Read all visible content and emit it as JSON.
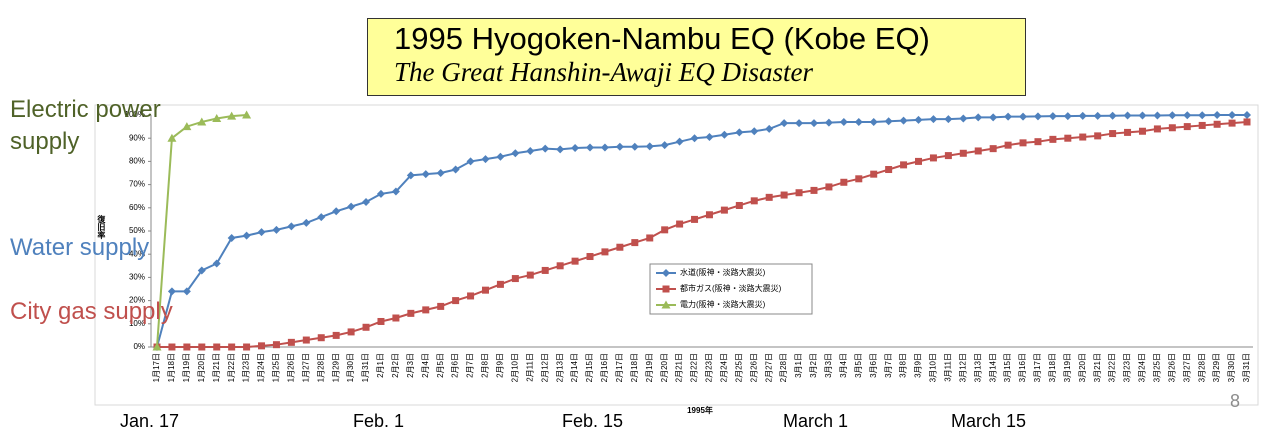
{
  "chart_data": {
    "type": "line",
    "title": "1995 Hyogoken-Nambu EQ (Kobe EQ)",
    "subtitle": "The Great Hanshin-Awaji EQ Disaster",
    "xlabel": "1995年",
    "ylabel": "復旧率",
    "categories": [
      "1月17日",
      "1月18日",
      "1月19日",
      "1月20日",
      "1月21日",
      "1月22日",
      "1月23日",
      "1月24日",
      "1月25日",
      "1月26日",
      "1月27日",
      "1月28日",
      "1月29日",
      "1月30日",
      "1月31日",
      "2月1日",
      "2月2日",
      "2月3日",
      "2月4日",
      "2月5日",
      "2月6日",
      "2月7日",
      "2月8日",
      "2月9日",
      "2月10日",
      "2月11日",
      "2月12日",
      "2月13日",
      "2月14日",
      "2月15日",
      "2月16日",
      "2月17日",
      "2月18日",
      "2月19日",
      "2月20日",
      "2月21日",
      "2月22日",
      "2月23日",
      "2月24日",
      "2月25日",
      "2月26日",
      "2月27日",
      "2月28日",
      "3月1日",
      "3月2日",
      "3月3日",
      "3月4日",
      "3月5日",
      "3月6日",
      "3月7日",
      "3月8日",
      "3月9日",
      "3月10日",
      "3月11日",
      "3月12日",
      "3月13日",
      "3月14日",
      "3月15日",
      "3月16日",
      "3月17日",
      "3月18日",
      "3月19日",
      "3月20日",
      "3月21日",
      "3月22日",
      "3月23日",
      "3月24日",
      "3月25日",
      "3月26日",
      "3月27日",
      "3月28日",
      "3月29日",
      "3月30日",
      "3月31日"
    ],
    "series": [
      {
        "name": "水道(阪神・淡路大震災)",
        "color": "#4f81bd",
        "marker": "diamond",
        "values": [
          0,
          24,
          24,
          33,
          36,
          47,
          48,
          49.5,
          50.5,
          52,
          53.5,
          56,
          58.5,
          60.5,
          62.5,
          66,
          67,
          74,
          74.5,
          75,
          76.5,
          80,
          81,
          82,
          83.5,
          84.5,
          85.5,
          85.2,
          85.8,
          86,
          86,
          86.3,
          86.3,
          86.5,
          87,
          88.5,
          90,
          90.5,
          91.5,
          92.5,
          93,
          94,
          96.5,
          96.5,
          96.5,
          96.7,
          97,
          97,
          97,
          97.3,
          97.6,
          97.9,
          98.2,
          98.2,
          98.5,
          99,
          99,
          99.3,
          99.3,
          99.4,
          99.5,
          99.5,
          99.6,
          99.6,
          99.7,
          99.8,
          99.8,
          99.8,
          99.9,
          99.9,
          99.9,
          100,
          100,
          100
        ]
      },
      {
        "name": "都市ガス(阪神・淡路大震災)",
        "color": "#c0504d",
        "marker": "square",
        "values": [
          0,
          0,
          0,
          0,
          0,
          0,
          0,
          0.5,
          1,
          2,
          3,
          4,
          5,
          6.5,
          8.5,
          11,
          12.5,
          14.5,
          16,
          17.5,
          20,
          22,
          24.5,
          27,
          29.5,
          31,
          33,
          35,
          37,
          39,
          41,
          43,
          45,
          47,
          50.5,
          53,
          55,
          57,
          59,
          61,
          63,
          64.5,
          65.5,
          66.5,
          67.5,
          69,
          71,
          72.5,
          74.5,
          76.5,
          78.5,
          80,
          81.5,
          82.5,
          83.5,
          84.5,
          85.5,
          87,
          88,
          88.5,
          89.5,
          90,
          90.5,
          91,
          92,
          92.5,
          93,
          94,
          94.5,
          95,
          95.5,
          96,
          96.5,
          97
        ]
      },
      {
        "name": "電力(阪神・淡路大震災)",
        "color": "#9bbb59",
        "marker": "triangle",
        "values": [
          0,
          90,
          95,
          97,
          98.5,
          99.5,
          100,
          null,
          null,
          null,
          null,
          null,
          null,
          null,
          null,
          null,
          null,
          null,
          null,
          null,
          null,
          null,
          null,
          null,
          null,
          null,
          null,
          null,
          null,
          null,
          null,
          null,
          null,
          null,
          null,
          null,
          null,
          null,
          null,
          null,
          null,
          null,
          null,
          null,
          null,
          null,
          null,
          null,
          null,
          null,
          null,
          null,
          null,
          null,
          null,
          null,
          null,
          null,
          null,
          null,
          null,
          null,
          null,
          null,
          null,
          null,
          null,
          null,
          null,
          null,
          null,
          null,
          null,
          null
        ]
      }
    ],
    "ylim": [
      0,
      100
    ],
    "yticks": [
      {
        "value": 0,
        "label": "0%"
      },
      {
        "value": 10,
        "label": "10%"
      },
      {
        "value": 20,
        "label": "20%"
      },
      {
        "value": 30,
        "label": "30%"
      },
      {
        "value": 40,
        "label": "40%"
      },
      {
        "value": 50,
        "label": "50%"
      },
      {
        "value": 60,
        "label": "60%"
      },
      {
        "value": 70,
        "label": "70%"
      },
      {
        "value": 80,
        "label": "80%"
      },
      {
        "value": 90,
        "label": "90%"
      },
      {
        "value": 100,
        "label": "100%"
      }
    ],
    "grid": false,
    "legend": "center",
    "annotations": [
      {
        "text": "Electric power supply",
        "color": "#4f6228"
      },
      {
        "text": "Water supply",
        "color": "#4f81bd"
      },
      {
        "text": "City gas supply",
        "color": "#c0504d"
      },
      {
        "text": "Jan. 17",
        "color": "#000000"
      },
      {
        "text": "Feb. 1",
        "color": "#000000"
      },
      {
        "text": "Feb. 15",
        "color": "#000000"
      },
      {
        "text": "March 1",
        "color": "#000000"
      },
      {
        "text": "March 15",
        "color": "#000000"
      }
    ],
    "page_number": "8"
  }
}
